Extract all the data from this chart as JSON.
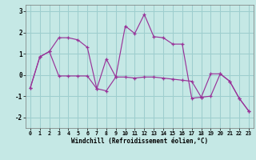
{
  "xlabel": "Windchill (Refroidissement éolien,°C)",
  "bg_color": "#c5e8e5",
  "grid_color": "#9ecece",
  "line_color": "#993399",
  "x_hours": [
    0,
    1,
    2,
    3,
    4,
    5,
    6,
    7,
    8,
    9,
    10,
    11,
    12,
    13,
    14,
    15,
    16,
    17,
    18,
    19,
    20,
    21,
    22,
    23
  ],
  "series1_y": [
    -0.6,
    0.85,
    1.1,
    1.75,
    1.75,
    1.65,
    1.3,
    -0.65,
    0.75,
    -0.1,
    2.3,
    1.95,
    2.85,
    1.8,
    1.75,
    1.45,
    1.45,
    -1.1,
    -1.05,
    0.05,
    0.05,
    -0.3,
    -1.1,
    -1.7
  ],
  "series2_y": [
    -0.6,
    0.85,
    1.1,
    -0.05,
    -0.05,
    -0.05,
    -0.05,
    -0.65,
    -0.75,
    -0.1,
    -0.1,
    -0.15,
    -0.1,
    -0.1,
    -0.15,
    -0.2,
    -0.25,
    -0.3,
    -1.05,
    -1.0,
    0.05,
    -0.3,
    -1.1,
    -1.7
  ],
  "ylim": [
    -2.5,
    3.3
  ],
  "yticks": [
    -2,
    -1,
    0,
    1,
    2,
    3
  ],
  "font_name": "monospace"
}
